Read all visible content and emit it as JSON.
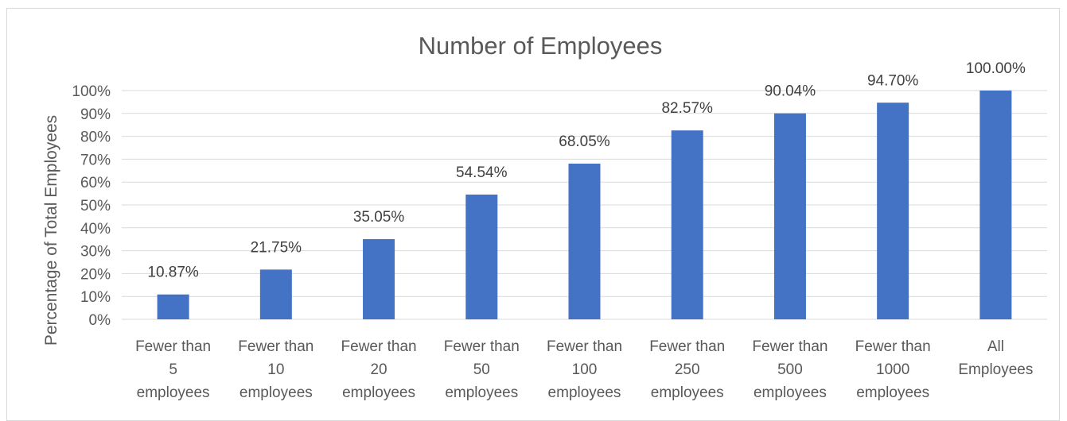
{
  "chart_data": {
    "type": "bar",
    "title": "Number of Employees",
    "xlabel": "",
    "ylabel": "Percentage of Total Employees",
    "ylim": [
      0,
      100
    ],
    "yticks": [
      "0%",
      "10%",
      "20%",
      "30%",
      "40%",
      "50%",
      "60%",
      "70%",
      "80%",
      "90%",
      "100%"
    ],
    "grid": true,
    "bar_color": "#4472c4",
    "categories": [
      [
        "Fewer than",
        "5",
        "employees"
      ],
      [
        "Fewer than",
        "10",
        "employees"
      ],
      [
        "Fewer than",
        "20",
        "employees"
      ],
      [
        "Fewer than",
        "50",
        "employees"
      ],
      [
        "Fewer than",
        "100",
        "employees"
      ],
      [
        "Fewer than",
        "250",
        "employees"
      ],
      [
        "Fewer than",
        "500",
        "employees"
      ],
      [
        "Fewer than",
        "1000",
        "employees"
      ],
      [
        "All",
        "Employees"
      ]
    ],
    "values": [
      10.87,
      21.75,
      35.05,
      54.54,
      68.05,
      82.57,
      90.04,
      94.7,
      100.0
    ],
    "data_labels": [
      "10.87%",
      "21.75%",
      "35.05%",
      "54.54%",
      "68.05%",
      "82.57%",
      "90.04%",
      "94.70%",
      "100.00%"
    ]
  }
}
